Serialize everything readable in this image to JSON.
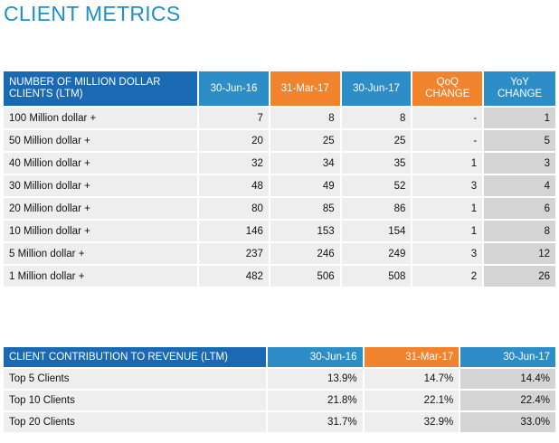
{
  "page_title": "CLIENT METRICS",
  "table1": {
    "header_line1": "NUMBER OF MILLION DOLLAR",
    "header_line2": "CLIENTS (LTM)",
    "col1": "30-Jun-16",
    "col2": "31-Mar-17",
    "col3": "30-Jun-17",
    "qoq_line1": "QoQ",
    "qoq_line2": "CHANGE",
    "yoy_line1": "YoY",
    "yoy_line2": "CHANGE",
    "rows": [
      {
        "label": "100 Million dollar +",
        "v1": "7",
        "v2": "8",
        "v3": "8",
        "qoq": "-",
        "yoy": "1"
      },
      {
        "label": "50 Million dollar +",
        "v1": "20",
        "v2": "25",
        "v3": "25",
        "qoq": "-",
        "yoy": "5"
      },
      {
        "label": "40 Million dollar +",
        "v1": "32",
        "v2": "34",
        "v3": "35",
        "qoq": "1",
        "yoy": "3"
      },
      {
        "label": "30 Million dollar +",
        "v1": "48",
        "v2": "49",
        "v3": "52",
        "qoq": "3",
        "yoy": "4"
      },
      {
        "label": "20 Million dollar +",
        "v1": "80",
        "v2": "85",
        "v3": "86",
        "qoq": "1",
        "yoy": "6"
      },
      {
        "label": "10 Million dollar +",
        "v1": "146",
        "v2": "153",
        "v3": "154",
        "qoq": "1",
        "yoy": "8"
      },
      {
        "label": "5 Million dollar +",
        "v1": "237",
        "v2": "246",
        "v3": "249",
        "qoq": "3",
        "yoy": "12"
      },
      {
        "label": "1 Million dollar +",
        "v1": "482",
        "v2": "506",
        "v3": "508",
        "qoq": "2",
        "yoy": "26"
      }
    ]
  },
  "table2": {
    "header": "CLIENT CONTRIBUTION TO REVENUE (LTM)",
    "col1": "30-Jun-16",
    "col2": "31-Mar-17",
    "col3": "30-Jun-17",
    "rows": [
      {
        "label": "Top 5 Clients",
        "v1": "13.9%",
        "v2": "14.7%",
        "v3": "14.4%"
      },
      {
        "label": "Top 10 Clients",
        "v1": "21.8%",
        "v2": "22.1%",
        "v3": "22.4%"
      },
      {
        "label": "Top 20 Clients",
        "v1": "31.7%",
        "v2": "32.9%",
        "v3": "33.0%"
      }
    ]
  }
}
